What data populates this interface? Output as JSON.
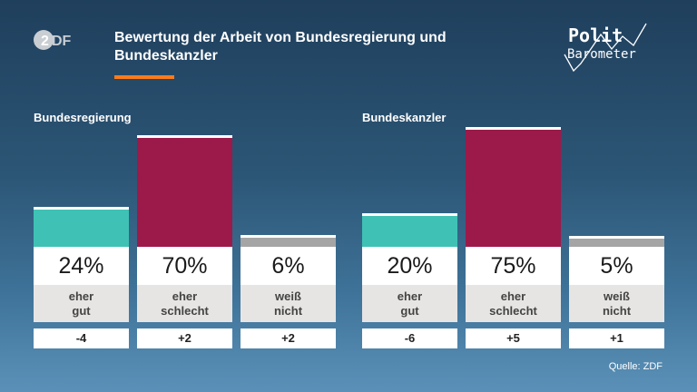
{
  "header": {
    "title": "Bewertung der Arbeit von Bundesregierung und Bundeskanzler",
    "logo_text": "ZDF",
    "brand_top": "Polit",
    "brand_bottom": "Barometer"
  },
  "source": "Quelle: ZDF",
  "colors": {
    "good": "#3fc2b5",
    "bad": "#9c1a4a",
    "unknown": "#a5a5a5",
    "accent": "#ff7a1a"
  },
  "chart_data": [
    {
      "type": "bar",
      "title": "Bundesregierung",
      "categories": [
        "eher\ngut",
        "eher\nschlecht",
        "weiß\nnicht"
      ],
      "values": [
        24,
        70,
        6
      ],
      "value_labels": [
        "24%",
        "70%",
        "6%"
      ],
      "changes": [
        "-4",
        "+2",
        "+2"
      ],
      "ylim": [
        0,
        100
      ]
    },
    {
      "type": "bar",
      "title": "Bundeskanzler",
      "categories": [
        "eher\ngut",
        "eher\nschlecht",
        "weiß\nnicht"
      ],
      "values": [
        20,
        75,
        5
      ],
      "value_labels": [
        "20%",
        "75%",
        "5%"
      ],
      "changes": [
        "-6",
        "+5",
        "+1"
      ],
      "ylim": [
        0,
        100
      ]
    }
  ]
}
